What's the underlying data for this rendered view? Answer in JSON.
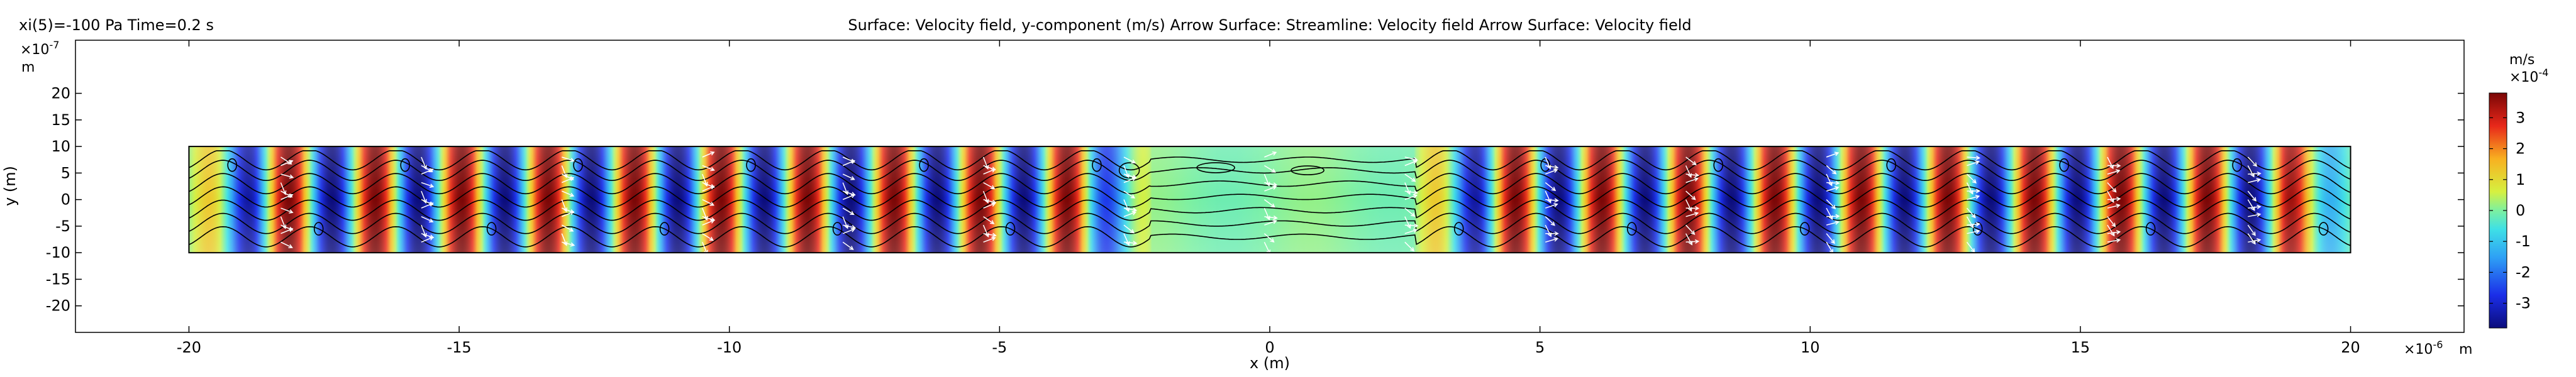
{
  "header": {
    "left": "xi(5)=-100 Pa Time=0.2 s",
    "title": "Surface: Velocity field, y-component (m/s)  Arrow Surface:   Streamline: Velocity field  Arrow Surface: Velocity field"
  },
  "chart_data": {
    "type": "heatmap",
    "title": "Surface: Velocity field, y-component (m/s)  Arrow Surface:   Streamline: Velocity field  Arrow Surface: Velocity field",
    "xlabel": "x (m)",
    "ylabel": "y (m)",
    "x_scale_label": "×10",
    "x_scale_exp": "-6",
    "x_unit": "m",
    "y_scale_label": "×10",
    "y_scale_exp": "-7",
    "y_unit": "m",
    "xlim": [
      -22.1,
      22.1
    ],
    "ylim": [
      -25,
      30
    ],
    "x_ticks": [
      -20,
      -15,
      -10,
      -5,
      0,
      5,
      10,
      15,
      20
    ],
    "y_ticks": [
      20,
      15,
      10,
      5,
      0,
      -5,
      -10,
      -15,
      -20
    ],
    "domain": {
      "x": [
        -20,
        20
      ],
      "y": [
        -10,
        10
      ]
    },
    "field": {
      "quantity": "Velocity field, y-component",
      "left_wave_x": [
        -20,
        -2.2
      ],
      "right_wave_x": [
        2.7,
        20
      ],
      "wavelength": 1.6,
      "peak_amplitude": 3.8
    },
    "colorbar": {
      "unit": "m/s",
      "scale_label": "×10",
      "scale_exp": "-4",
      "ticks": [
        3,
        2,
        1,
        0,
        -1,
        -2,
        -3
      ],
      "range": [
        -3.8,
        3.8
      ],
      "colormap": "rainbow"
    },
    "grid": false
  }
}
